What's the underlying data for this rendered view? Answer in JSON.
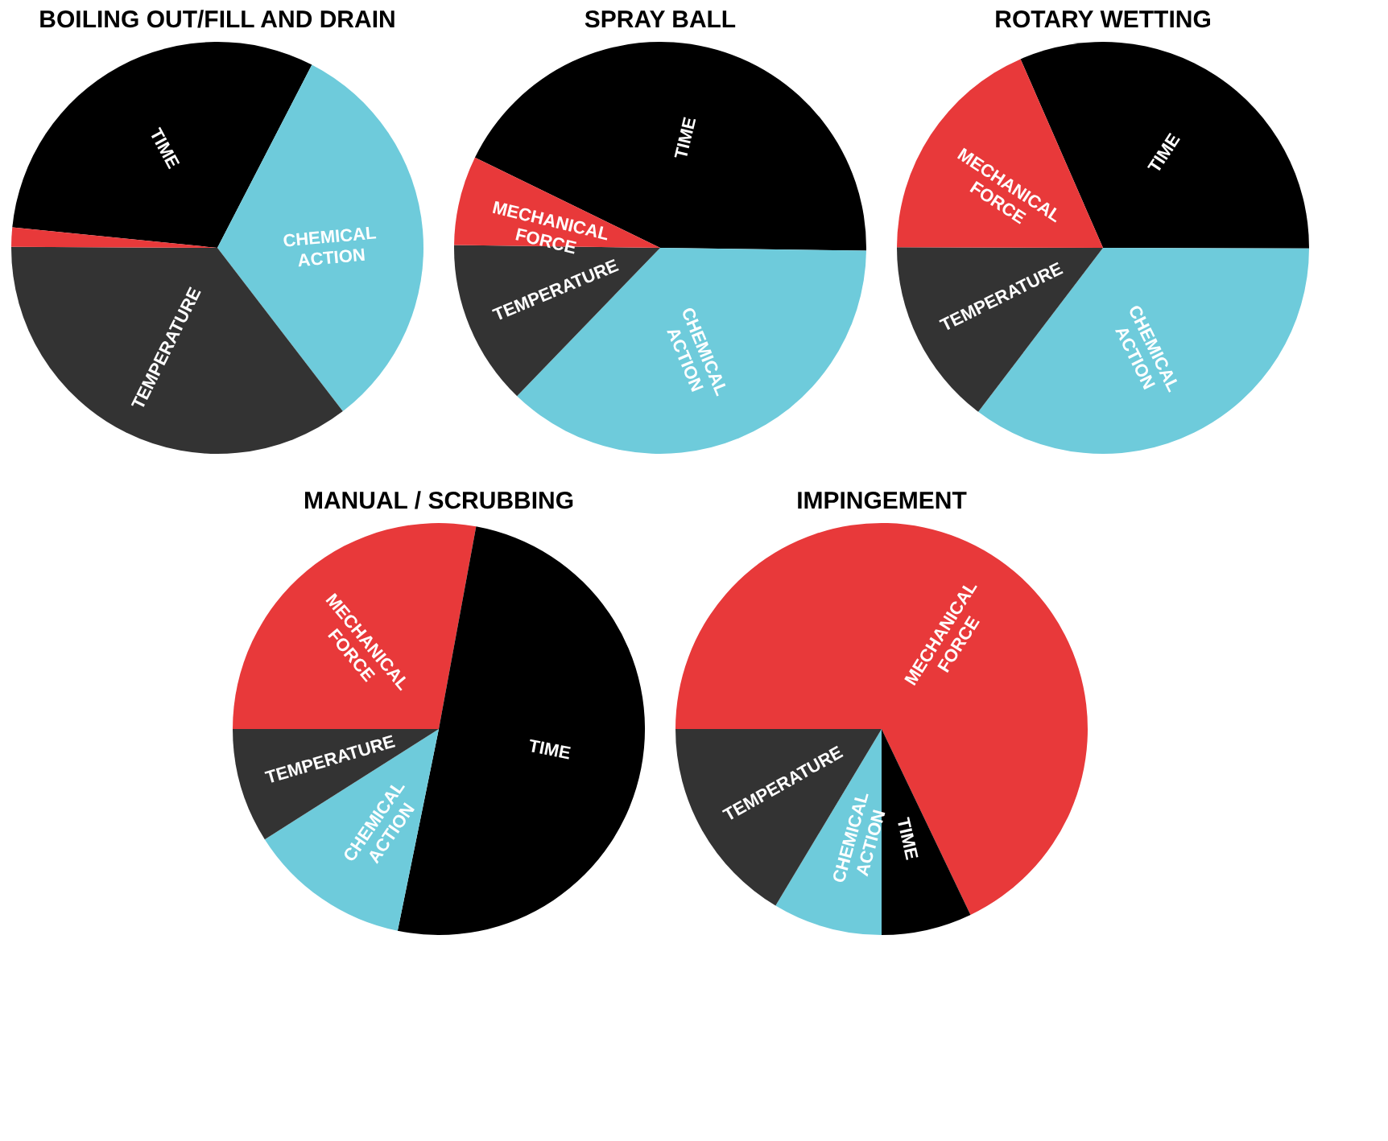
{
  "chart_data": [
    {
      "type": "pie",
      "title": "BOILING OUT/FILL AND DRAIN",
      "categories": [
        "TIME",
        "CHEMICAL ACTION",
        "TEMPERATURE",
        null
      ],
      "values": [
        31,
        32,
        35.5,
        1.5
      ],
      "colors": [
        "#000000",
        "#6ecbdb",
        "#333333",
        "#e8393a"
      ]
    },
    {
      "type": "pie",
      "title": "SPRAY BALL",
      "categories": [
        "TIME",
        "CHEMICAL ACTION",
        "TEMPERATURE",
        "MECHANICAL FORCE"
      ],
      "values": [
        43,
        37,
        13,
        7
      ],
      "colors": [
        "#000000",
        "#6ecbdb",
        "#333333",
        "#e8393a"
      ]
    },
    {
      "type": "pie",
      "title": "ROTARY WETTING",
      "categories": [
        "TIME",
        "CHEMICAL ACTION",
        "TEMPERATURE",
        "MECHANICAL FORCE"
      ],
      "values": [
        31.6,
        35.3,
        14.7,
        18.4
      ],
      "colors": [
        "#000000",
        "#6ecbdb",
        "#333333",
        "#e8393a"
      ]
    },
    {
      "type": "pie",
      "title": "MANUAL / SCRUBBING",
      "categories": [
        "MECHANICAL FORCE",
        "TIME",
        "CHEMICAL ACTION",
        "TEMPERATURE"
      ],
      "values": [
        27.9,
        50.3,
        12.8,
        9
      ],
      "colors": [
        "#e8393a",
        "#000000",
        "#6ecbdb",
        "#333333"
      ]
    },
    {
      "type": "pie",
      "title": "IMPINGEMENT",
      "categories": [
        "MECHANICAL FORCE",
        "TIME",
        "CHEMICAL ACTION",
        "TEMPERATURE"
      ],
      "values": [
        67.9,
        7.1,
        8.6,
        16.4
      ],
      "colors": [
        "#e8393a",
        "#000000",
        "#6ecbdb",
        "#333333"
      ]
    }
  ]
}
